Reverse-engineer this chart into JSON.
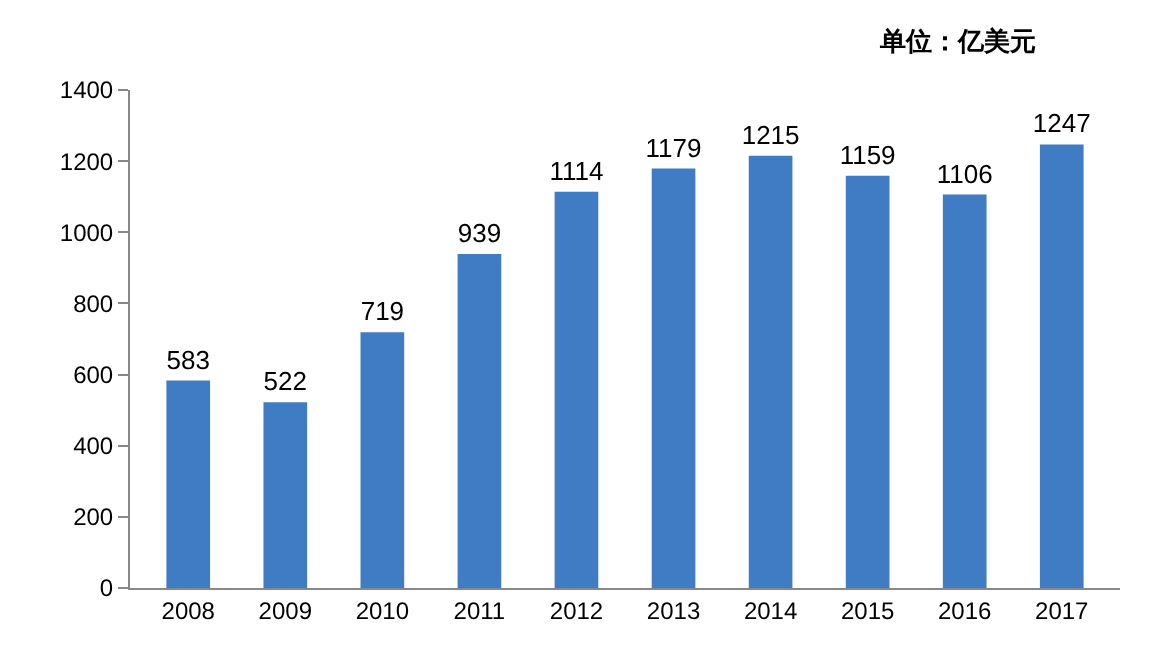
{
  "chart_data": {
    "type": "bar",
    "categories": [
      "2008",
      "2009",
      "2010",
      "2011",
      "2012",
      "2013",
      "2014",
      "2015",
      "2016",
      "2017"
    ],
    "values": [
      583,
      522,
      719,
      939,
      1114,
      1179,
      1215,
      1159,
      1106,
      1247
    ],
    "color": "#3f7cc4",
    "ylim": [
      0,
      1400
    ],
    "yticks": [
      0,
      200,
      400,
      600,
      800,
      1000,
      1200,
      1400
    ],
    "grid": false,
    "data_labels": true,
    "annotations": [
      "单位：亿美元"
    ]
  }
}
